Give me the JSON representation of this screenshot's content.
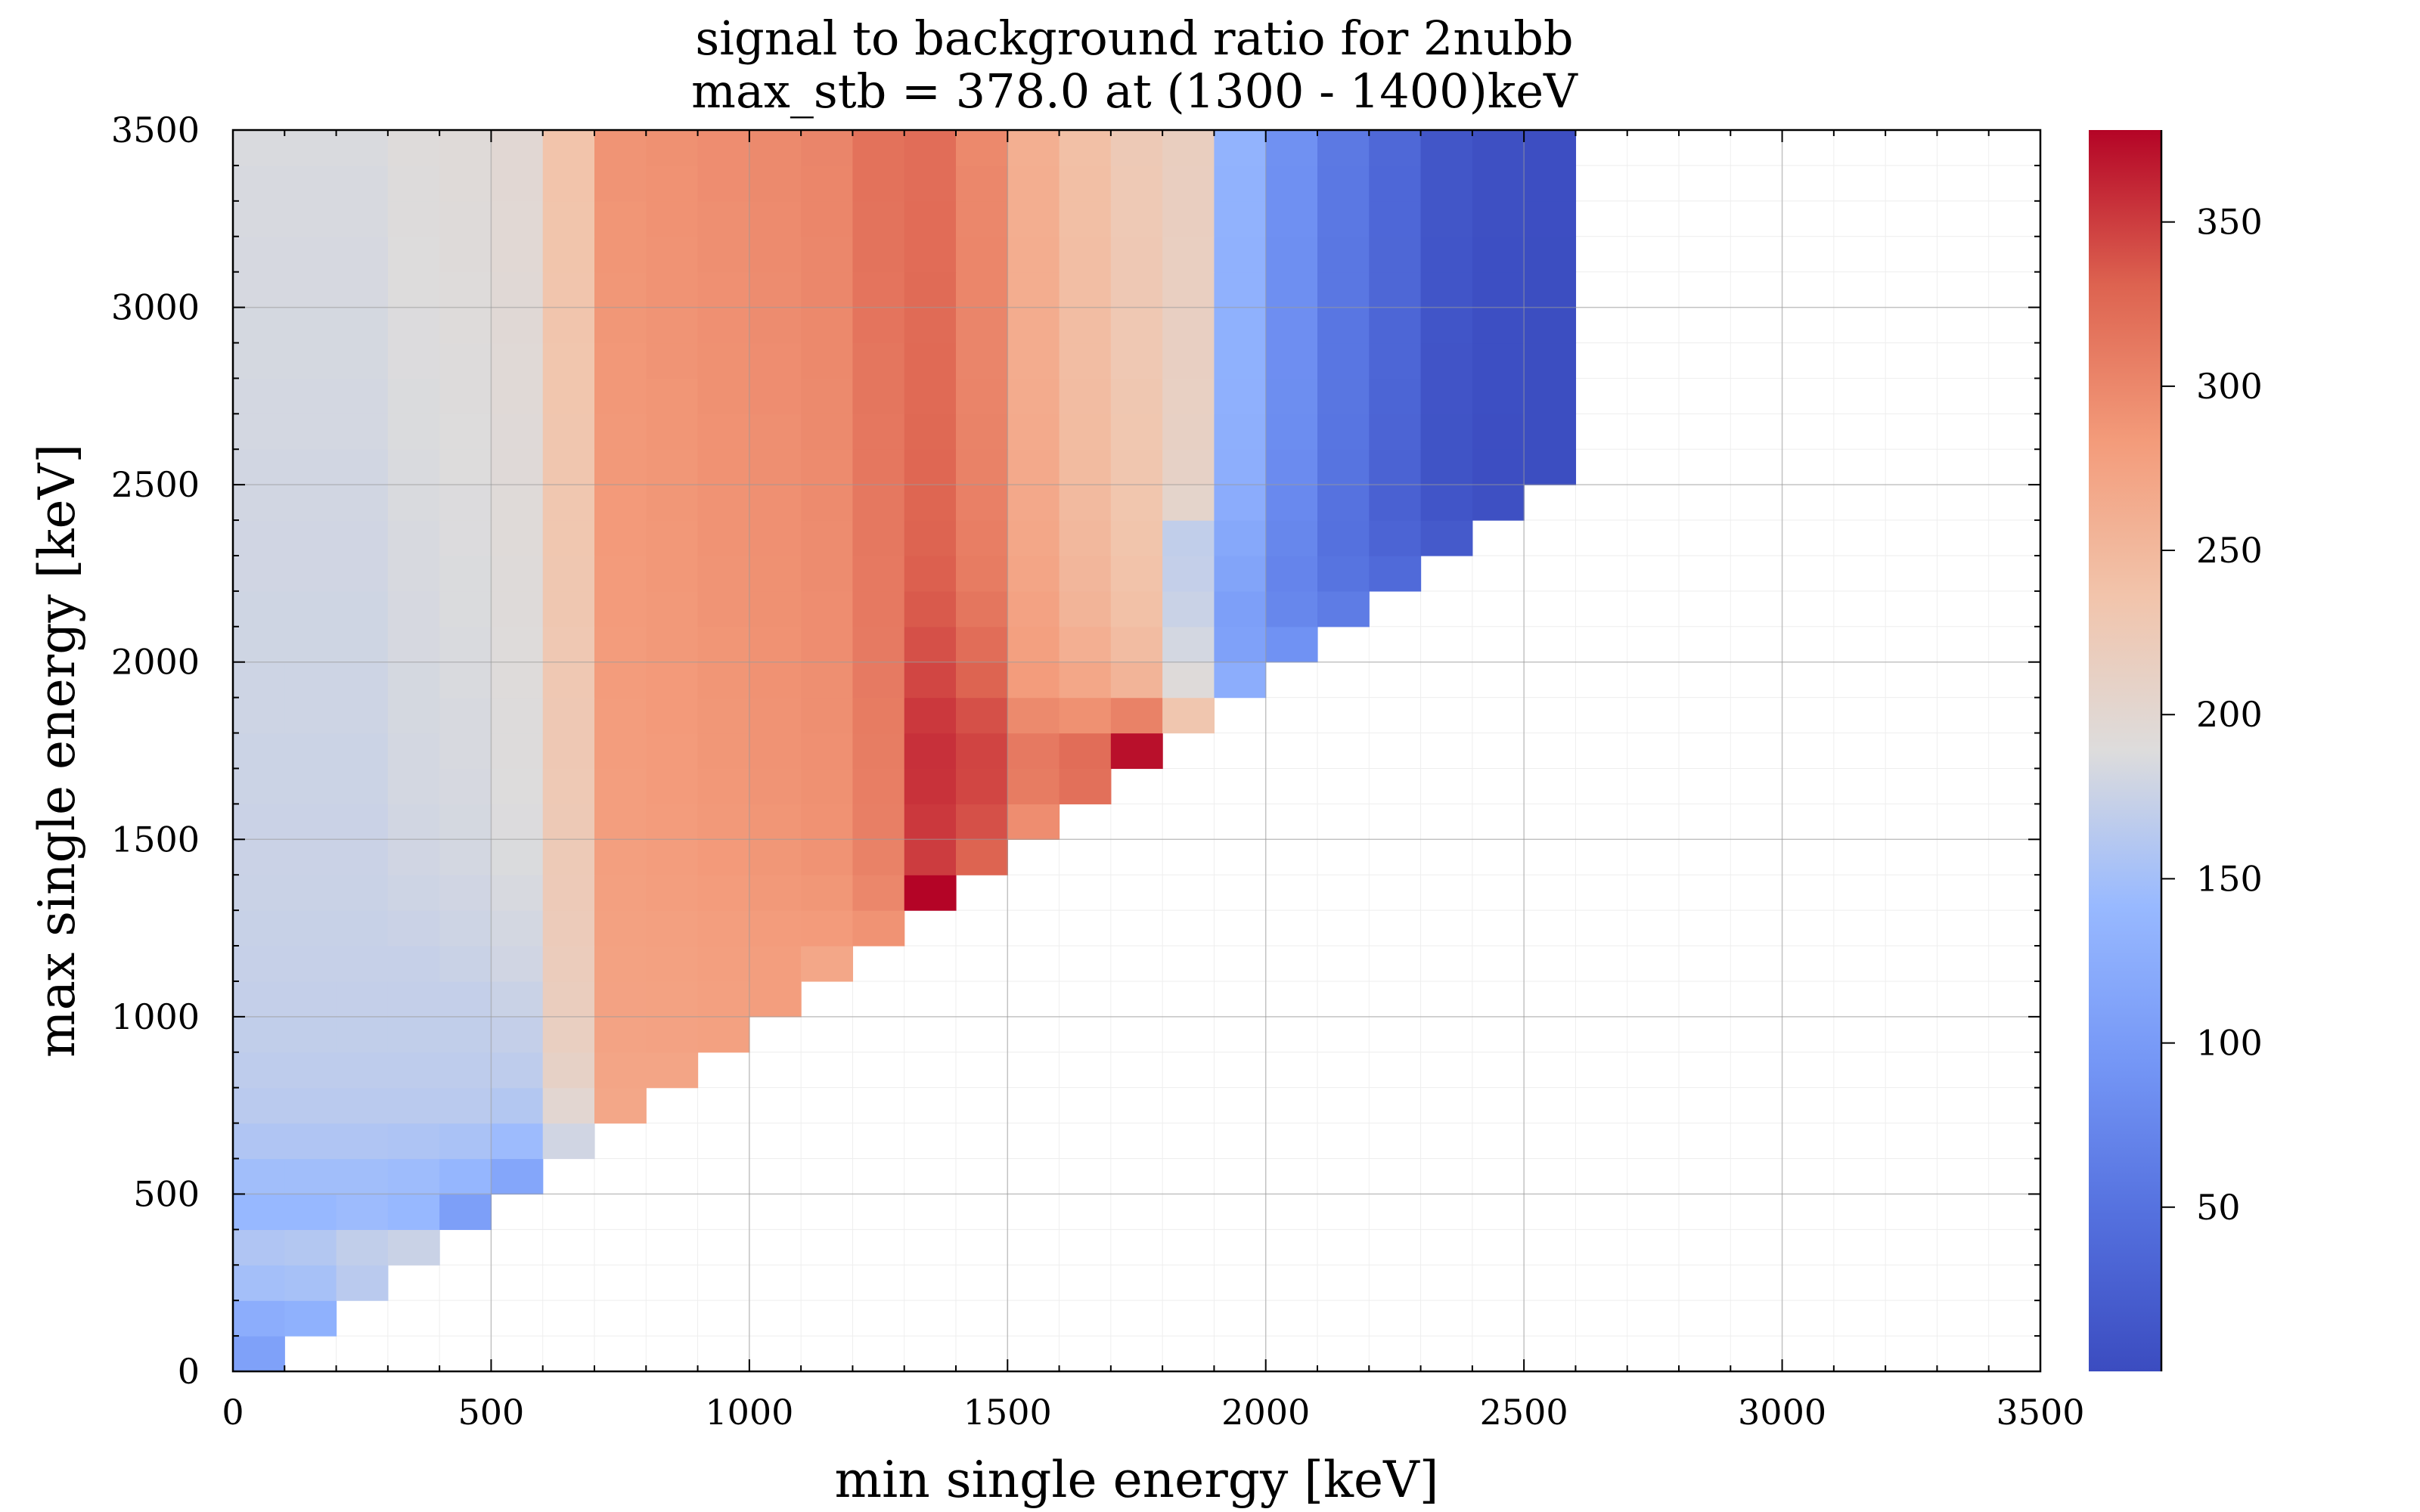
{
  "chart_data": {
    "type": "heatmap",
    "title": "signal to background ratio for 2nubb",
    "subtitle": "max_stb = 378.0 at (1300 - 1400)keV",
    "xlabel": "min single energy [keV]",
    "ylabel": "max single energy [keV]",
    "xlim": [
      0,
      3500
    ],
    "ylim": [
      0,
      3500
    ],
    "x_ticks": [
      "0",
      "500",
      "1000",
      "1500",
      "2000",
      "2500",
      "3000",
      "3500"
    ],
    "y_ticks": [
      "0",
      "500",
      "1000",
      "1500",
      "2000",
      "2500",
      "3000",
      "3500"
    ],
    "x_tick_values": [
      0,
      500,
      1000,
      1500,
      2000,
      2500,
      3000,
      3500
    ],
    "y_tick_values": [
      0,
      500,
      1000,
      1500,
      2000,
      2500,
      3000,
      3500
    ],
    "bin_width": 100,
    "x_bins_start": 0,
    "y_bins_start": 0,
    "grid": true,
    "colorscale": "coolwarm",
    "colorbar": {
      "range": [
        0,
        378
      ],
      "ticks": [
        "50",
        "100",
        "150",
        "200",
        "250",
        "300",
        "350"
      ],
      "tick_values": [
        50,
        100,
        150,
        200,
        250,
        300,
        350
      ]
    },
    "z_values": [
      [
        108
      ],
      [
        125,
        130
      ],
      [
        150,
        152,
        165
      ],
      [
        158,
        160,
        170,
        175
      ],
      [
        140,
        140,
        145,
        140,
        105
      ],
      [
        148,
        148,
        148,
        146,
        138,
        115
      ],
      [
        158,
        158,
        158,
        157,
        154,
        145,
        180
      ],
      [
        165,
        165,
        165,
        165,
        165,
        160,
        200,
        270
      ],
      [
        168,
        168,
        168,
        168,
        168,
        168,
        210,
        272,
        272
      ],
      [
        170,
        170,
        170,
        170,
        170,
        172,
        215,
        274,
        275,
        277
      ],
      [
        172,
        172,
        172,
        172,
        172,
        175,
        218,
        275,
        276,
        278,
        280
      ],
      [
        173,
        173,
        173,
        173,
        175,
        180,
        220,
        276,
        277,
        279,
        280,
        270
      ],
      [
        174,
        174,
        174,
        176,
        178,
        182,
        222,
        277,
        278,
        280,
        282,
        283,
        290
      ],
      [
        175,
        175,
        175,
        178,
        180,
        185,
        224,
        278,
        280,
        282,
        285,
        287,
        300,
        378
      ],
      [
        176,
        176,
        176,
        180,
        182,
        187,
        225,
        279,
        281,
        284,
        287,
        290,
        305,
        350,
        330
      ],
      [
        176,
        176,
        176,
        181,
        183,
        188,
        226,
        280,
        282,
        285,
        288,
        291,
        307,
        352,
        340,
        295
      ],
      [
        177,
        177,
        177,
        182,
        184,
        189,
        227,
        280,
        283,
        286,
        289,
        292,
        308,
        355,
        345,
        310,
        320
      ],
      [
        177,
        177,
        177,
        182,
        185,
        190,
        228,
        281,
        283,
        287,
        290,
        293,
        309,
        356,
        346,
        312,
        322,
        372
      ],
      [
        178,
        178,
        178,
        183,
        185,
        190,
        228,
        281,
        284,
        287,
        290,
        294,
        310,
        352,
        340,
        298,
        292,
        305,
        232
      ],
      [
        178,
        178,
        178,
        183,
        186,
        191,
        229,
        282,
        284,
        288,
        291,
        294,
        311,
        345,
        330,
        282,
        270,
        255,
        192,
        125
      ],
      [
        179,
        179,
        179,
        184,
        186,
        191,
        229,
        282,
        285,
        288,
        291,
        295,
        311,
        340,
        322,
        278,
        260,
        245,
        182,
        108,
        88
      ],
      [
        179,
        179,
        179,
        184,
        187,
        192,
        230,
        283,
        285,
        289,
        292,
        295,
        312,
        335,
        315,
        275,
        255,
        240,
        175,
        105,
        75,
        62
      ],
      [
        180,
        180,
        180,
        185,
        187,
        192,
        230,
        283,
        286,
        289,
        292,
        296,
        312,
        332,
        310,
        272,
        252,
        237,
        172,
        112,
        72,
        52,
        40
      ],
      [
        180,
        180,
        180,
        185,
        188,
        193,
        231,
        284,
        286,
        290,
        293,
        296,
        313,
        330,
        308,
        270,
        250,
        235,
        170,
        118,
        75,
        48,
        32,
        18
      ],
      [
        181,
        181,
        181,
        186,
        188,
        193,
        231,
        284,
        287,
        290,
        293,
        297,
        313,
        328,
        306,
        268,
        248,
        233,
        205,
        124,
        78,
        50,
        28,
        12,
        5
      ],
      [
        181,
        181,
        181,
        186,
        189,
        194,
        232,
        285,
        287,
        291,
        294,
        297,
        314,
        327,
        305,
        267,
        247,
        232,
        210,
        127,
        80,
        52,
        30,
        10,
        3,
        2
      ],
      [
        182,
        182,
        182,
        187,
        189,
        194,
        232,
        285,
        288,
        291,
        294,
        298,
        314,
        326,
        304,
        266,
        246,
        231,
        212,
        128,
        82,
        53,
        32,
        10,
        3,
        2
      ],
      [
        182,
        182,
        182,
        187,
        190,
        195,
        233,
        286,
        288,
        292,
        295,
        298,
        315,
        325,
        303,
        265,
        245,
        230,
        213,
        129,
        83,
        54,
        33,
        11,
        4,
        2
      ],
      [
        183,
        183,
        183,
        188,
        190,
        195,
        233,
        286,
        289,
        292,
        295,
        299,
        315,
        325,
        302,
        264,
        244,
        229,
        214,
        130,
        84,
        55,
        34,
        11,
        4,
        2
      ],
      [
        183,
        183,
        183,
        188,
        191,
        196,
        234,
        287,
        289,
        293,
        296,
        299,
        316,
        324,
        302,
        264,
        244,
        229,
        214,
        130,
        84,
        55,
        34,
        12,
        4,
        2
      ],
      [
        184,
        184,
        184,
        189,
        191,
        196,
        234,
        287,
        290,
        293,
        296,
        300,
        316,
        324,
        301,
        263,
        243,
        228,
        215,
        131,
        85,
        56,
        35,
        12,
        4,
        2
      ],
      [
        184,
        184,
        184,
        189,
        192,
        197,
        235,
        288,
        290,
        294,
        297,
        300,
        317,
        323,
        301,
        263,
        243,
        228,
        215,
        131,
        85,
        56,
        35,
        12,
        4,
        2
      ],
      [
        185,
        185,
        185,
        190,
        192,
        197,
        235,
        288,
        291,
        294,
        297,
        301,
        317,
        323,
        300,
        262,
        242,
        227,
        216,
        132,
        86,
        57,
        36,
        13,
        5,
        3
      ],
      [
        185,
        185,
        185,
        190,
        193,
        198,
        236,
        289,
        291,
        295,
        298,
        301,
        318,
        322,
        300,
        262,
        242,
        227,
        216,
        132,
        86,
        57,
        36,
        13,
        5,
        3
      ],
      [
        186,
        186,
        186,
        191,
        193,
        198,
        236,
        289,
        292,
        295,
        298,
        302,
        318,
        322,
        299,
        261,
        241,
        226,
        217,
        133,
        87,
        58,
        37,
        13,
        5,
        3
      ]
    ]
  }
}
